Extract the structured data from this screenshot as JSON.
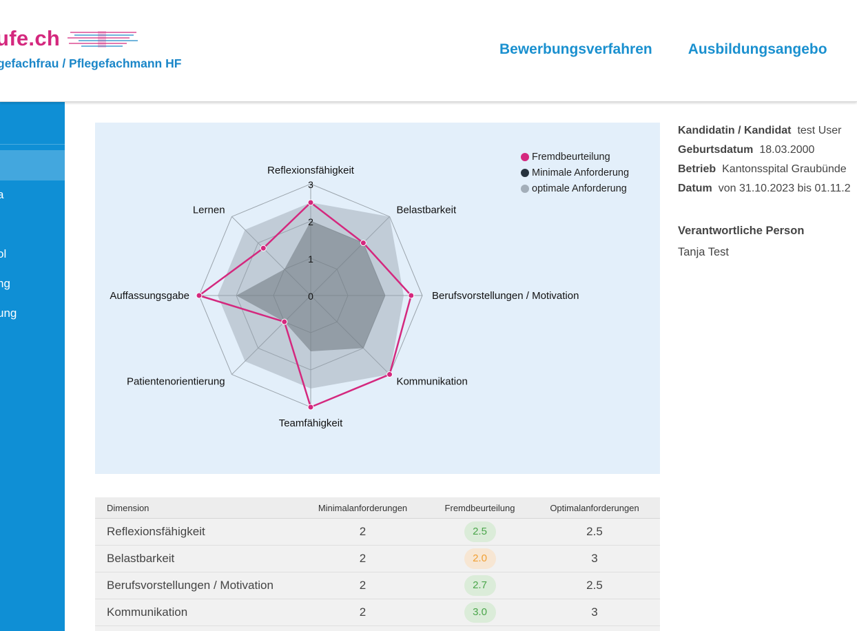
{
  "header": {
    "logo_text": "ufe.ch",
    "logo_subtitle": "gefachfrau / Pflegefachmann HF",
    "nav": [
      "Bewerbungsverfahren",
      "Ausbildungsangebo"
    ]
  },
  "sidebar": {
    "items": [
      "a",
      "ol",
      "ng",
      "ung"
    ]
  },
  "chart": {
    "legend": [
      {
        "label": "Fremdbeurteilung",
        "color": "#d4287e"
      },
      {
        "label": "Minimale Anforderung",
        "color": "#26323d"
      },
      {
        "label": "optimale Anforderung",
        "color": "#a3aeb9"
      }
    ],
    "tick_labels": [
      "0",
      "1",
      "2",
      "3"
    ]
  },
  "chart_data": {
    "type": "radar",
    "categories": [
      "Reflexionsfähigkeit",
      "Belastbarkeit",
      "Berufsvorstellungen / Motivation",
      "Kommunikation",
      "Teamfähigkeit",
      "Patientenorientierung",
      "Auffassungsgabe",
      "Lernen"
    ],
    "rlim": [
      0,
      3
    ],
    "series": [
      {
        "name": "Fremdbeurteilung",
        "values": [
          2.5,
          2.0,
          2.7,
          3.0,
          3.0,
          1.0,
          3.0,
          1.8
        ]
      },
      {
        "name": "Minimale Anforderung",
        "values": [
          2,
          2,
          2,
          2,
          1.5,
          1,
          2,
          1
        ]
      },
      {
        "name": "optimale Anforderung",
        "values": [
          2.5,
          3,
          2.5,
          3,
          2.5,
          2.5,
          2.5,
          2.5
        ]
      }
    ]
  },
  "info": {
    "rows": [
      {
        "label": "Kandidatin / Kandidat",
        "value": "test User"
      },
      {
        "label": "Geburtsdatum",
        "value": "18.03.2000"
      },
      {
        "label": "Betrieb",
        "value": "Kantonsspital Graubünde"
      },
      {
        "label": "Datum",
        "value": "von 31.10.2023 bis 01.11.2"
      }
    ],
    "responsible_label": "Verantwortliche Person",
    "responsible_value": "Tanja Test"
  },
  "table": {
    "headers": [
      "Dimension",
      "Minimalanforderungen",
      "Fremdbeurteilung",
      "Optimalanforderungen"
    ],
    "rows": [
      {
        "dimension": "Reflexionsfähigkeit",
        "min": "2",
        "fremd": "2.5",
        "opt": "2.5",
        "status": "green"
      },
      {
        "dimension": "Belastbarkeit",
        "min": "2",
        "fremd": "2.0",
        "opt": "3",
        "status": "orange"
      },
      {
        "dimension": "Berufsvorstellungen / Motivation",
        "min": "2",
        "fremd": "2.7",
        "opt": "2.5",
        "status": "green"
      },
      {
        "dimension": "Kommunikation",
        "min": "2",
        "fremd": "3.0",
        "opt": "3",
        "status": "green"
      }
    ]
  }
}
